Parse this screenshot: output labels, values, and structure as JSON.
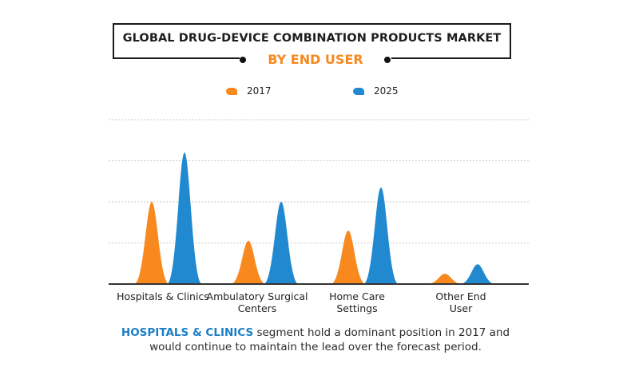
{
  "title": "GLOBAL DRUG-DEVICE COMBINATION PRODUCTS MARKET",
  "subtitle": "BY END USER",
  "colors": {
    "s2017": "#f7891f",
    "s2025": "#2089cf",
    "grid": "#c8c8c8",
    "axis": "#333333"
  },
  "chart_data": {
    "type": "area",
    "title": "GLOBAL DRUG-DEVICE COMBINATION PRODUCTS MARKET",
    "subtitle": "BY END USER",
    "categories": [
      "Hospitals & Clinics",
      "Ambulatory Surgical Centers",
      "Home Care Settings",
      "Other End User"
    ],
    "category_lines": [
      [
        "Hospitals & Clinics"
      ],
      [
        "Ambulatory Surgical",
        "Centers"
      ],
      [
        "Home Care",
        "Settings"
      ],
      [
        "Other End",
        "User"
      ]
    ],
    "series": [
      {
        "name": "2017",
        "color": "#f7891f",
        "values": [
          2.0,
          1.05,
          1.3,
          0.25
        ]
      },
      {
        "name": "2025",
        "color": "#2089cf",
        "values": [
          3.2,
          2.0,
          2.35,
          0.48
        ]
      }
    ],
    "ylim": [
      0,
      4
    ],
    "grid": true,
    "legend": "top-center",
    "xlabel": "",
    "ylabel": ""
  },
  "footer": {
    "highlight": "HOSPITALS & CLINICS",
    "line1_rest": " segment hold a dominant position in 2017 and",
    "line2": "would continue to maintain the lead over the forecast period."
  }
}
